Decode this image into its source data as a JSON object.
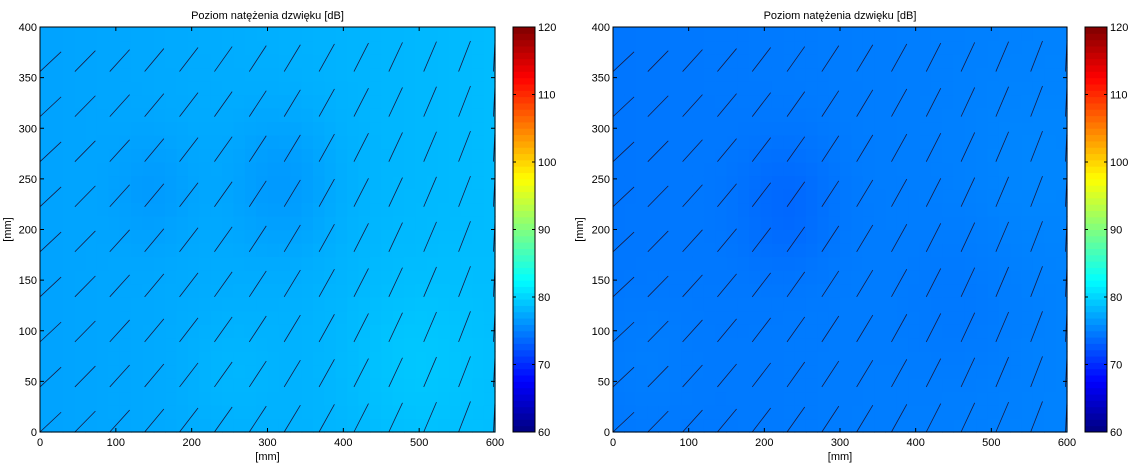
{
  "chart_data": [
    {
      "type": "heatmap",
      "title": "Poziom natężenia dzwięku [dB]",
      "xlabel": "[mm]",
      "ylabel": "[mm]",
      "xlim": [
        0,
        600
      ],
      "ylim": [
        0,
        400
      ],
      "xticks": [
        0,
        100,
        200,
        300,
        400,
        500,
        600
      ],
      "yticks": [
        0,
        50,
        100,
        150,
        200,
        250,
        300,
        350,
        400
      ],
      "colorbar": {
        "min": 60,
        "max": 120,
        "ticks": [
          60,
          70,
          80,
          90,
          100,
          110,
          120
        ],
        "colormap": "jet"
      },
      "overlay": "vector field (short black line segments)",
      "field": {
        "base_db": 77.8,
        "gradient_x_db_per_mm": 0.0025,
        "features": [
          {
            "x": 320,
            "y": 245,
            "radius": 70,
            "delta_db": -1.3
          },
          {
            "x": 150,
            "y": 240,
            "radius": 55,
            "delta_db": -0.8
          },
          {
            "x": 490,
            "y": 70,
            "radius": 90,
            "delta_db": 0.9
          },
          {
            "x": 250,
            "y": 60,
            "radius": 60,
            "delta_db": 0.5
          }
        ]
      },
      "vectors": {
        "x_start": 0,
        "x_step": 46,
        "y_start": 0,
        "y_step": 44.5,
        "angle_left_deg": 35,
        "angle_right_deg": 65,
        "length_mm": 34
      }
    },
    {
      "type": "heatmap",
      "title": "Poziom natężenia dzwięku [dB]",
      "xlabel": "[mm]",
      "ylabel": "[mm]",
      "xlim": [
        0,
        600
      ],
      "ylim": [
        0,
        400
      ],
      "xticks": [
        0,
        100,
        200,
        300,
        400,
        500,
        600
      ],
      "yticks": [
        0,
        50,
        100,
        150,
        200,
        250,
        300,
        350,
        400
      ],
      "colorbar": {
        "min": 60,
        "max": 120,
        "ticks": [
          60,
          70,
          80,
          90,
          100,
          110,
          120
        ],
        "colormap": "jet"
      },
      "overlay": "vector field (short black line segments)",
      "field": {
        "base_db": 74.8,
        "gradient_x_db_per_mm": 0.0012,
        "features": [
          {
            "x": 230,
            "y": 225,
            "radius": 65,
            "delta_db": -1.1
          },
          {
            "x": 460,
            "y": 130,
            "radius": 80,
            "delta_db": -0.4
          },
          {
            "x": 40,
            "y": 70,
            "radius": 70,
            "delta_db": 0.4
          },
          {
            "x": 550,
            "y": 260,
            "radius": 80,
            "delta_db": 0.3
          }
        ]
      },
      "vectors": {
        "x_start": 0,
        "x_step": 46,
        "y_start": 0,
        "y_step": 44.5,
        "angle_left_deg": 35,
        "angle_right_deg": 65,
        "length_mm": 34
      }
    }
  ]
}
